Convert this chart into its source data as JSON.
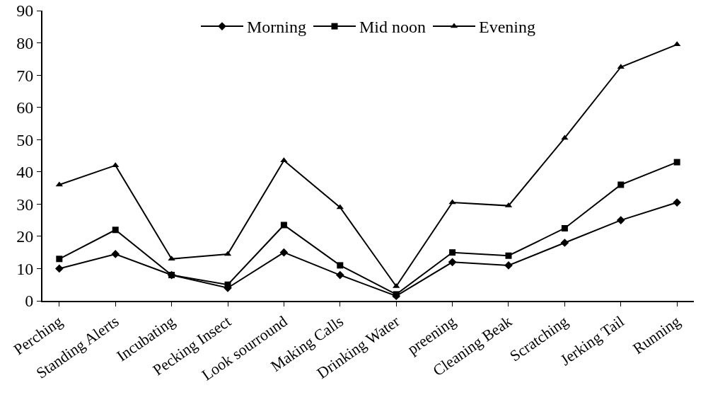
{
  "chart_data": {
    "type": "line",
    "categories": [
      "Perching",
      "Standing Alerts",
      "Incubating",
      "Pecking Insect",
      "Look sourround",
      "Making Calls",
      "Drinking Water",
      "preening",
      "Cleaning Beak",
      "Scratching",
      "Jerking Tail",
      "Running"
    ],
    "series": [
      {
        "name": "Morning",
        "color": "#000000",
        "marker": "diamond",
        "values": [
          10,
          14.5,
          8,
          4,
          15,
          8,
          1.5,
          12,
          11,
          18,
          25,
          30.5
        ]
      },
      {
        "name": "Mid noon",
        "color": "#000000",
        "marker": "square",
        "values": [
          13,
          22,
          8,
          5,
          23.5,
          11,
          2,
          15,
          14,
          22.5,
          36,
          43
        ]
      },
      {
        "name": "Evening",
        "color": "#000000",
        "marker": "triangle",
        "values": [
          36,
          42,
          13,
          14.5,
          43.5,
          29,
          4.5,
          30.5,
          29.5,
          50.5,
          72.5,
          79.5
        ]
      }
    ],
    "ylim": [
      0,
      90
    ],
    "yticks": [
      0,
      10,
      20,
      30,
      40,
      50,
      60,
      70,
      80,
      90
    ],
    "grid": false,
    "legend": "top",
    "line_style": "solid"
  }
}
